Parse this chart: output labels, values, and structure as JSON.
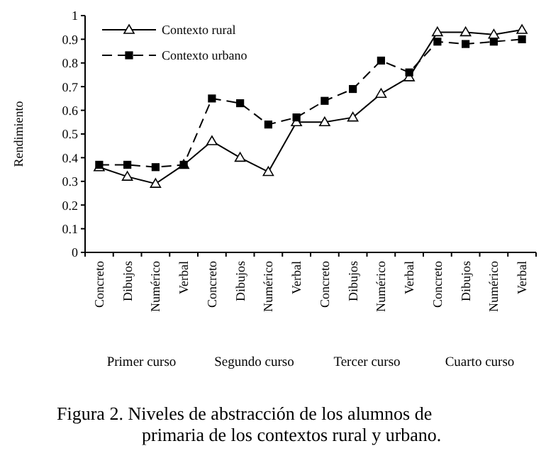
{
  "chart_data": {
    "type": "line",
    "ylabel": "Rendimiento",
    "title": "Figura 2. Niveles de abstracción de los alumnos de primaria de los contextos rural  y urbano.",
    "categories": [
      "Concreto",
      "Dibujos",
      "Numérico",
      "Verbal",
      "Concreto",
      "Dibujos",
      "Numérico",
      "Verbal",
      "Concreto",
      "Dibujos",
      "Numérico",
      "Verbal",
      "Concreto",
      "Dibujos",
      "Numérico",
      "Verbal"
    ],
    "series": [
      {
        "name": "Contexto rural",
        "color": "#000000",
        "marker": "triangle",
        "line_style": "solid",
        "values": [
          0.36,
          0.32,
          0.29,
          0.37,
          0.47,
          0.4,
          0.34,
          0.55,
          0.55,
          0.57,
          0.67,
          0.74,
          0.93,
          0.93,
          0.92,
          0.94
        ]
      },
      {
        "name": "Contexto urbano",
        "color": "#000000",
        "marker": "square",
        "line_style": "dashed",
        "values": [
          0.37,
          0.37,
          0.36,
          0.37,
          0.65,
          0.63,
          0.54,
          0.57,
          0.64,
          0.69,
          0.81,
          0.76,
          0.89,
          0.88,
          0.89,
          0.9
        ]
      }
    ],
    "annotations": [
      "Primer curso",
      "Segundo curso",
      "Tercer curso",
      "Cuarto curso"
    ],
    "ylim": [
      0,
      1
    ],
    "yticks": [
      0,
      0.1,
      0.2,
      0.3,
      0.4,
      0.5,
      0.6,
      0.7,
      0.8,
      0.9,
      1
    ],
    "grid": false,
    "legend": "top left"
  }
}
